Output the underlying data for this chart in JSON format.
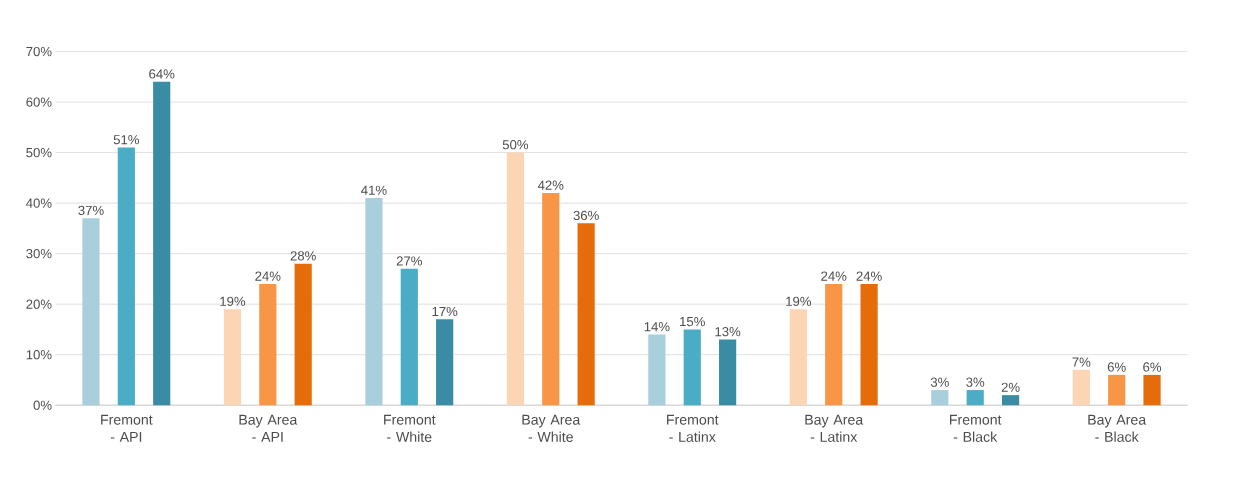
{
  "chart_data": {
    "type": "bar",
    "categories": [
      "Fremont - API",
      "Bay Area - API",
      "Fremont - White",
      "Bay Area - White",
      "Fremont - Latinx",
      "Bay Area - Latinx",
      "Fremont - Black",
      "Bay Area - Black"
    ],
    "series": [
      {
        "colors": [
          "#a9cfdc",
          "#fcd5b5",
          "#a9cfdc",
          "#fcd5b5",
          "#a9cfdc",
          "#fcd5b5",
          "#a9cfdc",
          "#fcd5b5"
        ],
        "values": [
          37,
          19,
          41,
          50,
          14,
          19,
          3,
          7
        ],
        "value_labels": [
          "37%",
          "19%",
          "41%",
          "50%",
          "14%",
          "19%",
          "3%",
          "7%"
        ]
      },
      {
        "colors": [
          "#4bacc6",
          "#f79646",
          "#4bacc6",
          "#f79646",
          "#4bacc6",
          "#f79646",
          "#4bacc6",
          "#f79646"
        ],
        "values": [
          51,
          24,
          27,
          42,
          15,
          24,
          3,
          6
        ],
        "value_labels": [
          "51%",
          "24%",
          "27%",
          "42%",
          "15%",
          "24%",
          "3%",
          "6%"
        ]
      },
      {
        "colors": [
          "#3a8ca4",
          "#e46c0a",
          "#3a8ca4",
          "#e46c0a",
          "#3a8ca4",
          "#e46c0a",
          "#3a8ca4",
          "#e46c0a"
        ],
        "values": [
          64,
          28,
          17,
          36,
          13,
          24,
          2,
          6
        ],
        "value_labels": [
          "64%",
          "28%",
          "17%",
          "36%",
          "13%",
          "24%",
          "2%",
          "6%"
        ]
      }
    ],
    "ylim": [
      0,
      70
    ],
    "yticks": [
      {
        "value": 0,
        "label": "0%"
      },
      {
        "value": 10,
        "label": "10%"
      },
      {
        "value": 20,
        "label": "20%"
      },
      {
        "value": 30,
        "label": "30%"
      },
      {
        "value": 40,
        "label": "40%"
      },
      {
        "value": 50,
        "label": "50%"
      },
      {
        "value": 60,
        "label": "60%"
      },
      {
        "value": 70,
        "label": "70%"
      }
    ],
    "grid": "y"
  }
}
